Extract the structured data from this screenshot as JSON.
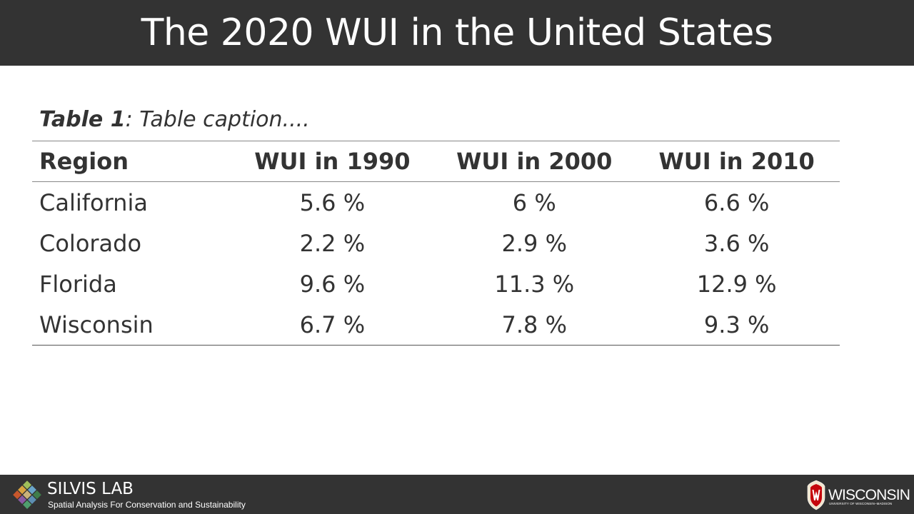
{
  "slide": {
    "title": "The 2020 WUI in the United States"
  },
  "caption": {
    "label": "Table 1",
    "text": ": Table caption...."
  },
  "table": {
    "headers": [
      "Region",
      "WUI in 1990",
      "WUI in 2000",
      "WUI in 2010"
    ],
    "rows": [
      [
        "California",
        "5.6 %",
        "6 %",
        "6.6 %"
      ],
      [
        "Colorado",
        "2.2 %",
        "2.9 %",
        "3.6 %"
      ],
      [
        "Florida",
        "9.6 %",
        "11.3 %",
        "12.9 %"
      ],
      [
        "Wisconsin",
        "6.7 %",
        "7.8 %",
        "9.3 %"
      ]
    ]
  },
  "footer": {
    "lab_name": "SILVIS LAB",
    "lab_tagline": "Spatial Analysis For Conservation and Sustainability",
    "lab_logo_icon": "diamond-mosaic-icon",
    "university_name": "WISCONSIN",
    "university_subtitle": "UNIVERSITY OF WISCONSIN–MADISON",
    "university_logo_icon": "uw-crest-icon"
  },
  "colors": {
    "bar_background": "#333333",
    "text": "#333333",
    "crest_red": "#c5050c"
  }
}
